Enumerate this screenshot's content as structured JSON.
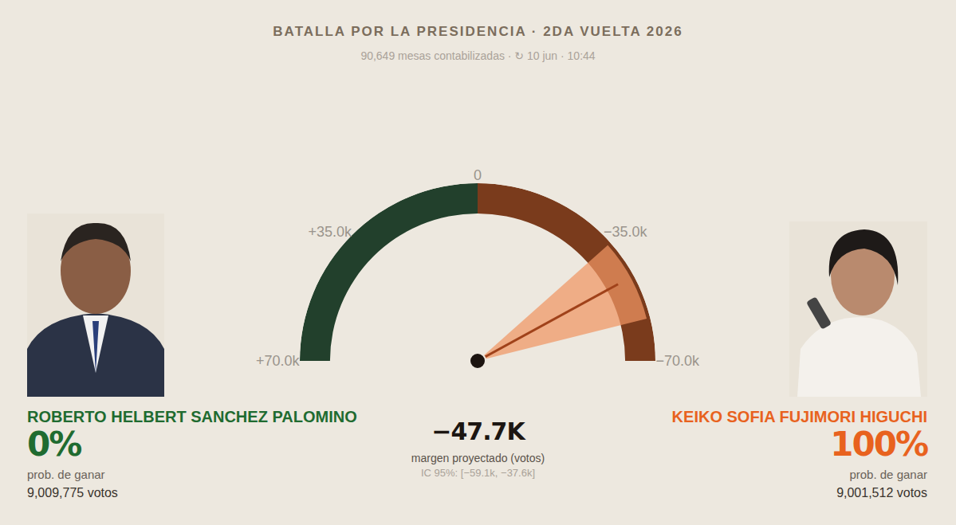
{
  "chart_data": {
    "type": "gauge",
    "title": "BATALLA POR LA PRESIDENCIA · 2DA VUELTA 2026",
    "subtitle": "90,649 mesas contabilizadas · ↻ 10 jun · 10:44",
    "xlim": [
      -70000,
      70000
    ],
    "xticks": [
      {
        "value": 70000,
        "label": "+70.0k"
      },
      {
        "value": 35000,
        "label": "+35.0k"
      },
      0,
      {
        "value": -35000,
        "label": "−35.0k"
      },
      {
        "value": -70000,
        "label": "−70.0k"
      }
    ],
    "value": -47700,
    "value_label": "−47.7K",
    "value_caption": "margen proyectado (votos)",
    "ci": [
      -59100,
      -37600
    ],
    "ci_label": "IC 95%: [−59.1k, −37.6k]",
    "probability_caption": "prob. de ganar",
    "series": [
      {
        "name": "ROBERTO HELBERT SANCHEZ PALOMINO",
        "color": "#22402c",
        "probability": "0%",
        "votes": "9,009,775 votos"
      },
      {
        "name": "KEIKO SOFIA FUJIMORI HIGUCHI",
        "color": "#7a3b1c",
        "probability": "100%",
        "votes": "9,001,512 votos"
      }
    ]
  }
}
